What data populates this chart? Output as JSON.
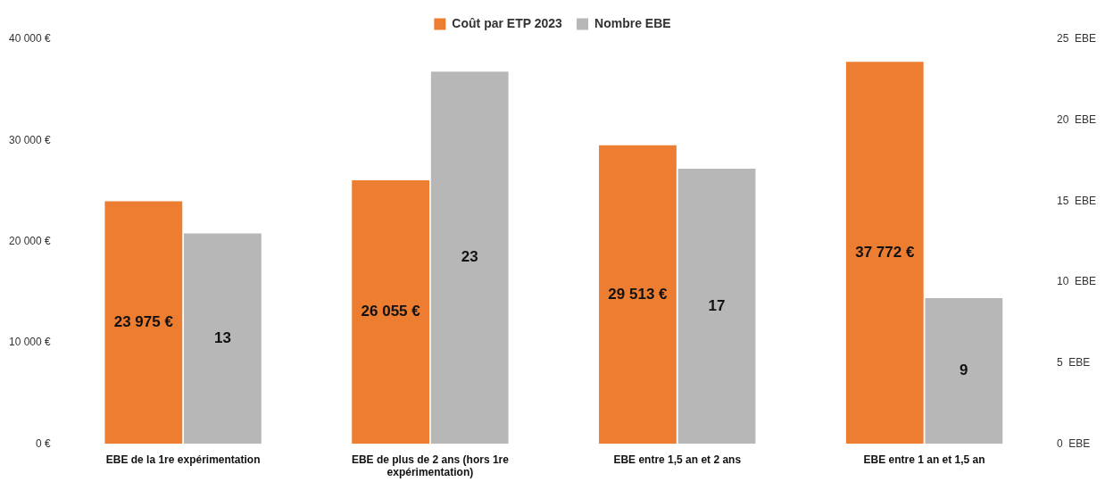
{
  "chart_data": {
    "type": "bar",
    "categories": [
      "EBE de la 1re expérimentation",
      "EBE de plus de 2 ans (hors 1re expérimentation)",
      "EBE entre 1,5 an et 2 ans",
      "EBE entre 1 an et 1,5 an"
    ],
    "series": [
      {
        "name": "Coût par ETP 2023",
        "color": "#ed7d31",
        "values": [
          23975,
          26055,
          29513,
          37772
        ],
        "value_labels": [
          "23 975 €",
          "26 055 €",
          "29 513 €",
          "37 772 €"
        ]
      },
      {
        "name": "Nombre EBE",
        "color": "#b7b7b7",
        "axis": "y2",
        "values": [
          13,
          23,
          17,
          9
        ],
        "value_labels": [
          "13",
          "23",
          "17",
          "9"
        ]
      }
    ],
    "ylim": [
      0,
      40000
    ],
    "yticks": [
      {
        "value": 0,
        "label": "0 €"
      },
      {
        "value": 10000,
        "label": "10 000 €"
      },
      {
        "value": 20000,
        "label": "20 000 €"
      },
      {
        "value": 30000,
        "label": "30 000 €"
      },
      {
        "value": 40000,
        "label": "40 000 €"
      }
    ],
    "y2lim": [
      0,
      25
    ],
    "y2ticks": [
      {
        "value": 0,
        "label": "0  EBE"
      },
      {
        "value": 5,
        "label": "5  EBE"
      },
      {
        "value": 10,
        "label": "10  EBE"
      },
      {
        "value": 15,
        "label": "15  EBE"
      },
      {
        "value": 20,
        "label": "20  EBE"
      },
      {
        "value": 25,
        "label": "25  EBE"
      }
    ],
    "legend": "top",
    "grid": false
  }
}
